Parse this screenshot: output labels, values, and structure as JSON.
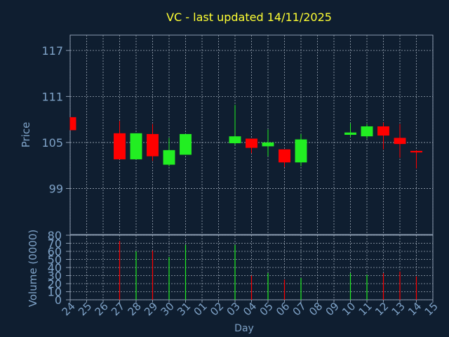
{
  "title": "VC - last updated 14/11/2025",
  "colors": {
    "background": "#0f1e30",
    "panel_border": "#8a9bb0",
    "grid": "#9aa6b4",
    "title": "#ffff33",
    "axis_text": "#7fa3c8",
    "up": "#22ee22",
    "down": "#ff0000"
  },
  "chart_data": [
    {
      "type": "candlestick",
      "ylabel": "Price",
      "ylim": [
        93,
        119
      ],
      "yticks": [
        99,
        105,
        111,
        117
      ],
      "grid": true,
      "x": [
        "24",
        "25",
        "26",
        "27",
        "28",
        "29",
        "30",
        "31",
        "01",
        "02",
        "03",
        "04",
        "05",
        "06",
        "07",
        "08",
        "09",
        "10",
        "11",
        "12",
        "13",
        "14",
        "15"
      ],
      "candles": [
        {
          "day": "24",
          "open": 108.3,
          "high": 108.3,
          "low": 106.6,
          "close": 106.6
        },
        {
          "day": "27",
          "open": 106.2,
          "high": 107.8,
          "low": 102.8,
          "close": 102.8
        },
        {
          "day": "28",
          "open": 102.8,
          "high": 106.2,
          "low": 102.8,
          "close": 106.2
        },
        {
          "day": "29",
          "open": 106.1,
          "high": 107.4,
          "low": 102.6,
          "close": 103.2
        },
        {
          "day": "30",
          "open": 102.1,
          "high": 105.6,
          "low": 101.9,
          "close": 104.0
        },
        {
          "day": "31",
          "open": 103.4,
          "high": 106.1,
          "low": 103.4,
          "close": 106.1
        },
        {
          "day": "03",
          "open": 104.9,
          "high": 109.9,
          "low": 104.7,
          "close": 105.8
        },
        {
          "day": "04",
          "open": 105.5,
          "high": 105.5,
          "low": 103.6,
          "close": 104.3
        },
        {
          "day": "05",
          "open": 104.5,
          "high": 106.7,
          "low": 103.2,
          "close": 105.0
        },
        {
          "day": "06",
          "open": 104.1,
          "high": 104.1,
          "low": 101.8,
          "close": 102.4
        },
        {
          "day": "07",
          "open": 102.4,
          "high": 106.1,
          "low": 101.9,
          "close": 105.4
        },
        {
          "day": "10",
          "open": 106.0,
          "high": 107.5,
          "low": 105.7,
          "close": 106.3
        },
        {
          "day": "11",
          "open": 105.8,
          "high": 107.4,
          "low": 105.5,
          "close": 107.1
        },
        {
          "day": "12",
          "open": 107.1,
          "high": 107.6,
          "low": 104.1,
          "close": 105.9
        },
        {
          "day": "13",
          "open": 105.6,
          "high": 107.4,
          "low": 103.0,
          "close": 104.8
        },
        {
          "day": "14",
          "open": 103.9,
          "high": 104.0,
          "low": 101.6,
          "close": 103.7
        }
      ]
    },
    {
      "type": "bar",
      "xlabel": "Day",
      "ylabel": "Volume (0000)",
      "ylim": [
        0,
        80
      ],
      "yticks": [
        0,
        10,
        20,
        30,
        40,
        50,
        60,
        70,
        80
      ],
      "grid": true,
      "x": [
        "24",
        "25",
        "26",
        "27",
        "28",
        "29",
        "30",
        "31",
        "01",
        "02",
        "03",
        "04",
        "05",
        "06",
        "07",
        "08",
        "09",
        "10",
        "11",
        "12",
        "13",
        "14",
        "15"
      ],
      "volumes": [
        {
          "day": "27",
          "value": 73,
          "direction": "down"
        },
        {
          "day": "28",
          "value": 60,
          "direction": "up"
        },
        {
          "day": "29",
          "value": 61,
          "direction": "down"
        },
        {
          "day": "30",
          "value": 53,
          "direction": "up"
        },
        {
          "day": "31",
          "value": 68,
          "direction": "up"
        },
        {
          "day": "03",
          "value": 68,
          "direction": "up"
        },
        {
          "day": "04",
          "value": 30,
          "direction": "down"
        },
        {
          "day": "05",
          "value": 33,
          "direction": "up"
        },
        {
          "day": "06",
          "value": 25,
          "direction": "down"
        },
        {
          "day": "07",
          "value": 27,
          "direction": "up"
        },
        {
          "day": "10",
          "value": 33,
          "direction": "up"
        },
        {
          "day": "11",
          "value": 31,
          "direction": "up"
        },
        {
          "day": "12",
          "value": 33,
          "direction": "down"
        },
        {
          "day": "13",
          "value": 35,
          "direction": "down"
        },
        {
          "day": "14",
          "value": 29,
          "direction": "down"
        }
      ]
    }
  ]
}
